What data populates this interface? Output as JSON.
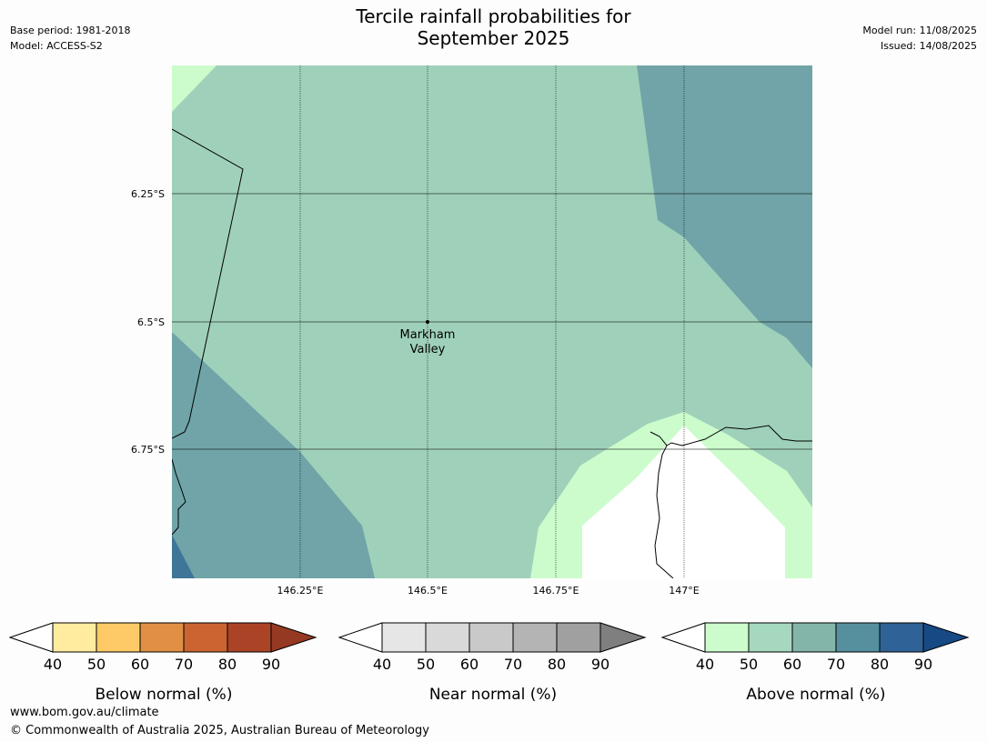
{
  "header": {
    "title_line1": "Tercile rainfall probabilities for",
    "title_line2": "September 2025",
    "base_period": "Base period: 1981-2018",
    "model": "Model: ACCESS-S2",
    "model_run": "Model run: 11/08/2025",
    "issued": "Issued: 14/08/2025"
  },
  "map": {
    "lat_labels": [
      "6.25°S",
      "6.5°S",
      "6.75°S"
    ],
    "lon_labels": [
      "146.25°E",
      "146.5°E",
      "146.75°E",
      "147°E"
    ],
    "place": {
      "name_line1": "Markham",
      "name_line2": "Valley"
    },
    "colors": {
      "above_40_50": "#ccfccc",
      "above_50_60": "#9fd1ba",
      "above_60_70": "#70a4a8",
      "above_70_80": "#3f7697",
      "no_category": "#ffffff"
    }
  },
  "colorbars": [
    {
      "label": "Below normal (%)",
      "ticks": [
        "40",
        "50",
        "60",
        "70",
        "80",
        "90"
      ],
      "colors": [
        "#ffffff",
        "#ffec9f",
        "#fdca67",
        "#e08f45",
        "#cb6431",
        "#ab4426",
        "#963922"
      ]
    },
    {
      "label": "Near normal (%)",
      "ticks": [
        "40",
        "50",
        "60",
        "70",
        "80",
        "90"
      ],
      "colors": [
        "#ffffff",
        "#e6e6e6",
        "#d9d9d9",
        "#c9c9c9",
        "#b4b4b4",
        "#a0a0a0",
        "#7f7f7f"
      ]
    },
    {
      "label": "Above normal (%)",
      "ticks": [
        "40",
        "50",
        "60",
        "70",
        "80",
        "90"
      ],
      "colors": [
        "#ffffff",
        "#ccfccc",
        "#a6d8bf",
        "#83b6a9",
        "#568f9e",
        "#2f6296",
        "#174a85"
      ]
    }
  ],
  "footer": {
    "url": "www.bom.gov.au/climate",
    "copyright": "© Commonwealth of Australia 2025, Australian Bureau of Meteorology"
  }
}
